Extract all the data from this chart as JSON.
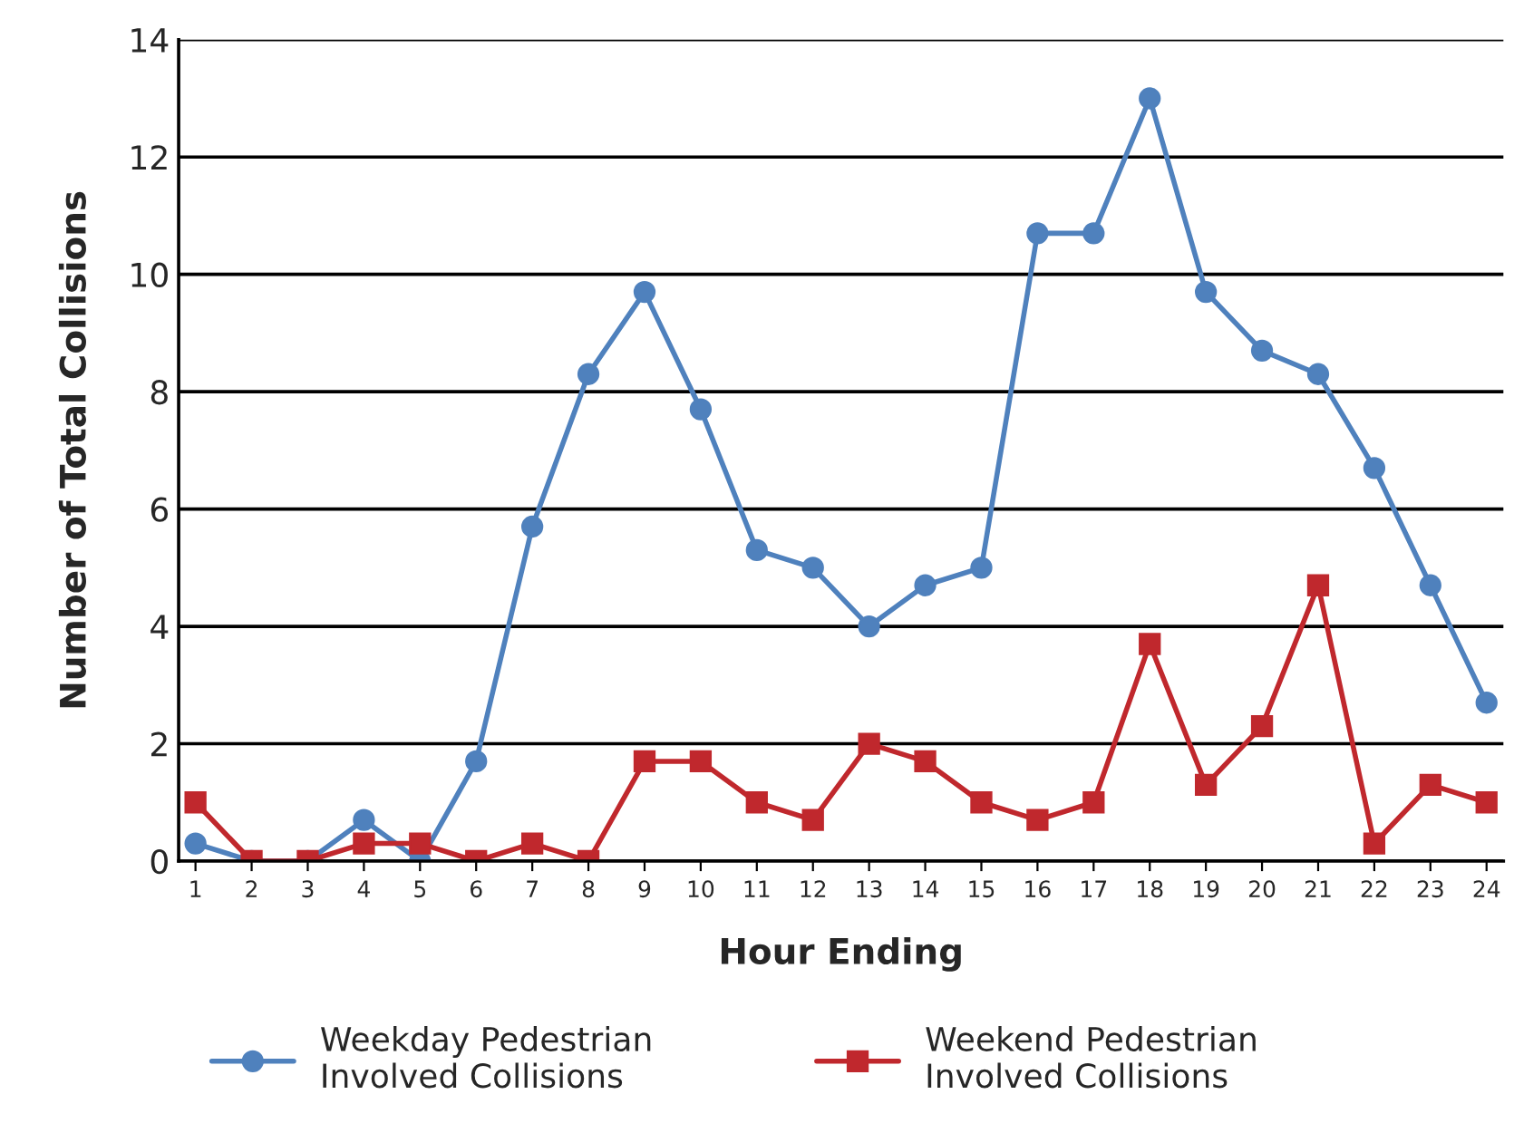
{
  "chart_data": {
    "type": "line",
    "xlabel": "Hour Ending",
    "ylabel": "Number of Total Collisions",
    "categories": [
      "1",
      "2",
      "3",
      "4",
      "5",
      "6",
      "7",
      "8",
      "9",
      "10",
      "11",
      "12",
      "13",
      "14",
      "15",
      "16",
      "17",
      "18",
      "19",
      "20",
      "21",
      "22",
      "23",
      "24"
    ],
    "series": [
      {
        "name": "Weekday Pedestrian\nInvolved Collisions",
        "color": "#4f81bd",
        "marker": "circle",
        "values": [
          0.3,
          0,
          0,
          0.7,
          0,
          1.7,
          5.7,
          8.3,
          9.7,
          7.7,
          5.3,
          5,
          4,
          4.7,
          5,
          10.7,
          10.7,
          13,
          9.7,
          8.7,
          8.3,
          6.7,
          4.7,
          2.7
        ]
      },
      {
        "name": "Weekend Pedestrian\nInvolved Collisions",
        "color": "#c0282d",
        "marker": "square",
        "values": [
          1,
          0,
          0,
          0.3,
          0.3,
          0,
          0.3,
          0,
          1.7,
          1.7,
          1,
          0.7,
          2,
          1.7,
          1,
          0.7,
          1,
          3.7,
          1.3,
          2.3,
          4.7,
          0.3,
          1.3,
          1
        ]
      }
    ],
    "ylim": [
      0,
      14
    ],
    "yticks": [
      0,
      2,
      4,
      6,
      8,
      10,
      12,
      14
    ],
    "grid": "y",
    "legend": "bottom"
  }
}
